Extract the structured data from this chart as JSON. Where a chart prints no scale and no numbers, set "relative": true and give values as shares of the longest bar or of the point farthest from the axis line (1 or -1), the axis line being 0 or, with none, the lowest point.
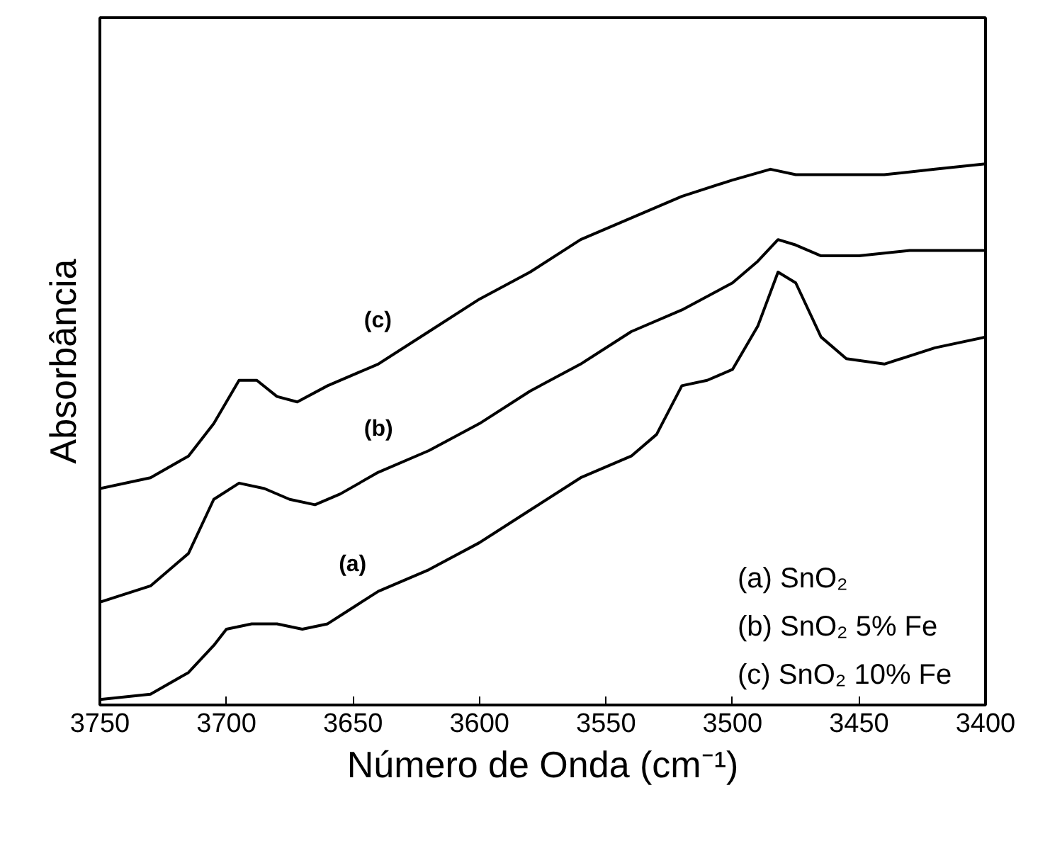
{
  "chart_data": {
    "type": "line",
    "relative": true,
    "xlabel": "Número de Onda (cm⁻¹)",
    "ylabel": "Absorbância",
    "xlim": [
      3750,
      3400
    ],
    "xticks": [
      3750,
      3700,
      3650,
      3600,
      3550,
      3500,
      3450,
      3400
    ],
    "grid": false,
    "marker": "none",
    "line_style": "solid",
    "annotations": [
      "(a) SnO₂",
      "(b) SnO₂ 5% Fe",
      "(c) SnO₂ 10% Fe"
    ],
    "series": [
      {
        "name": "(a)",
        "color": "#000000",
        "x": [
          3750,
          3730,
          3715,
          3705,
          3700,
          3690,
          3680,
          3670,
          3660,
          3650,
          3640,
          3620,
          3600,
          3580,
          3560,
          3540,
          3530,
          3520,
          3510,
          3500,
          3490,
          3482,
          3475,
          3465,
          3455,
          3440,
          3420,
          3400
        ],
        "values": [
          0.01,
          0.02,
          0.06,
          0.11,
          0.14,
          0.15,
          0.15,
          0.14,
          0.15,
          0.18,
          0.21,
          0.25,
          0.3,
          0.36,
          0.42,
          0.46,
          0.5,
          0.59,
          0.6,
          0.62,
          0.7,
          0.8,
          0.78,
          0.68,
          0.64,
          0.63,
          0.66,
          0.68
        ]
      },
      {
        "name": "(b)",
        "color": "#000000",
        "x": [
          3750,
          3730,
          3715,
          3705,
          3695,
          3685,
          3675,
          3665,
          3655,
          3640,
          3620,
          3600,
          3580,
          3560,
          3540,
          3520,
          3500,
          3490,
          3482,
          3475,
          3465,
          3450,
          3430,
          3400
        ],
        "values": [
          0.19,
          0.22,
          0.28,
          0.38,
          0.41,
          0.4,
          0.38,
          0.37,
          0.39,
          0.43,
          0.47,
          0.52,
          0.58,
          0.63,
          0.69,
          0.73,
          0.78,
          0.82,
          0.86,
          0.85,
          0.83,
          0.83,
          0.84,
          0.84
        ]
      },
      {
        "name": "(c)",
        "color": "#000000",
        "x": [
          3750,
          3730,
          3715,
          3705,
          3695,
          3688,
          3680,
          3672,
          3660,
          3640,
          3620,
          3600,
          3580,
          3560,
          3540,
          3520,
          3500,
          3485,
          3475,
          3460,
          3440,
          3420,
          3400
        ],
        "values": [
          0.4,
          0.42,
          0.46,
          0.52,
          0.6,
          0.6,
          0.57,
          0.56,
          0.59,
          0.63,
          0.69,
          0.75,
          0.8,
          0.86,
          0.9,
          0.94,
          0.97,
          0.99,
          0.98,
          0.98,
          0.98,
          0.99,
          1.0
        ]
      }
    ]
  }
}
